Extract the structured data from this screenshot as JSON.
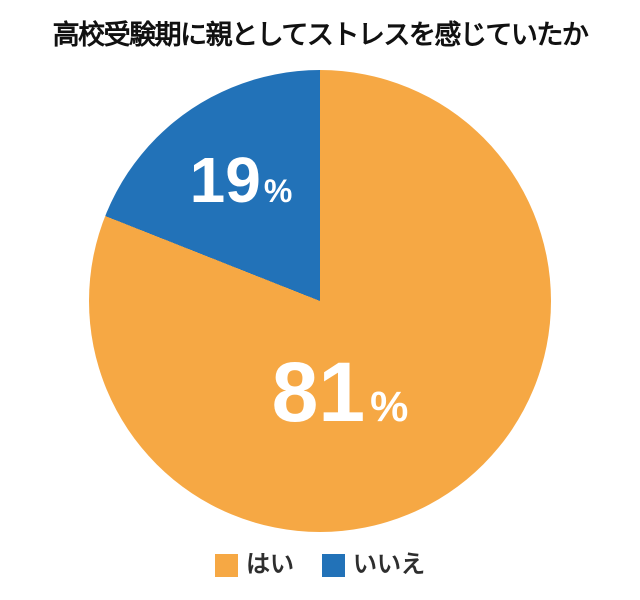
{
  "title": "高校受験期に親としてストレスを感じていたか",
  "percent_sign": "%",
  "colors": {
    "background": "#FFFFFF",
    "title_text": "#111111",
    "slice_label_text": "#FFFFFF",
    "legend_text": "#2E2E2E",
    "yes": "#F6A844",
    "no": "#2272B8"
  },
  "chart_data": {
    "type": "pie",
    "title": "高校受験期に親としてストレスを感じていたか",
    "unit": "%",
    "start_angle_deg": 0,
    "direction": "clockwise",
    "legend_position": "bottom",
    "labels_inside": true,
    "slices": [
      {
        "label": "はい",
        "value": 81,
        "color": "#F6A844",
        "display": "81%"
      },
      {
        "label": "いいえ",
        "value": 19,
        "color": "#2272B8",
        "display": "19%"
      }
    ]
  },
  "legend": {
    "items": [
      {
        "label": "はい",
        "color": "#F6A844"
      },
      {
        "label": "いいえ",
        "color": "#2272B8"
      }
    ]
  }
}
